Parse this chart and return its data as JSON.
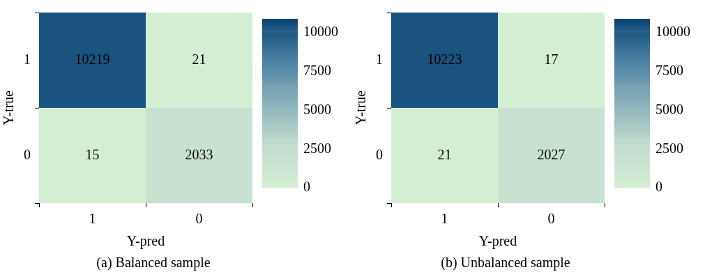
{
  "chart_data": [
    {
      "type": "heatmap",
      "title": "(a) Balanced sample",
      "xlabel": "Y-pred",
      "ylabel": "Y-true",
      "categories": [
        "1",
        "0"
      ],
      "y_categories": [
        "1",
        "0"
      ],
      "cells": [
        [
          10219,
          21
        ],
        [
          15,
          2033
        ]
      ],
      "clim": [
        0,
        10900
      ],
      "cticks": [
        0,
        2500,
        5000,
        7500,
        10000
      ],
      "data_labels": true
    },
    {
      "type": "heatmap",
      "title": "(b) Unbalanced sample",
      "xlabel": "Y-pred",
      "ylabel": "Y-true",
      "categories": [
        "1",
        "0"
      ],
      "y_categories": [
        "1",
        "0"
      ],
      "cells": [
        [
          10223,
          17
        ],
        [
          21,
          2027
        ]
      ],
      "clim": [
        0,
        10900
      ],
      "cticks": [
        0,
        2500,
        5000,
        7500,
        10000
      ],
      "data_labels": true
    }
  ]
}
